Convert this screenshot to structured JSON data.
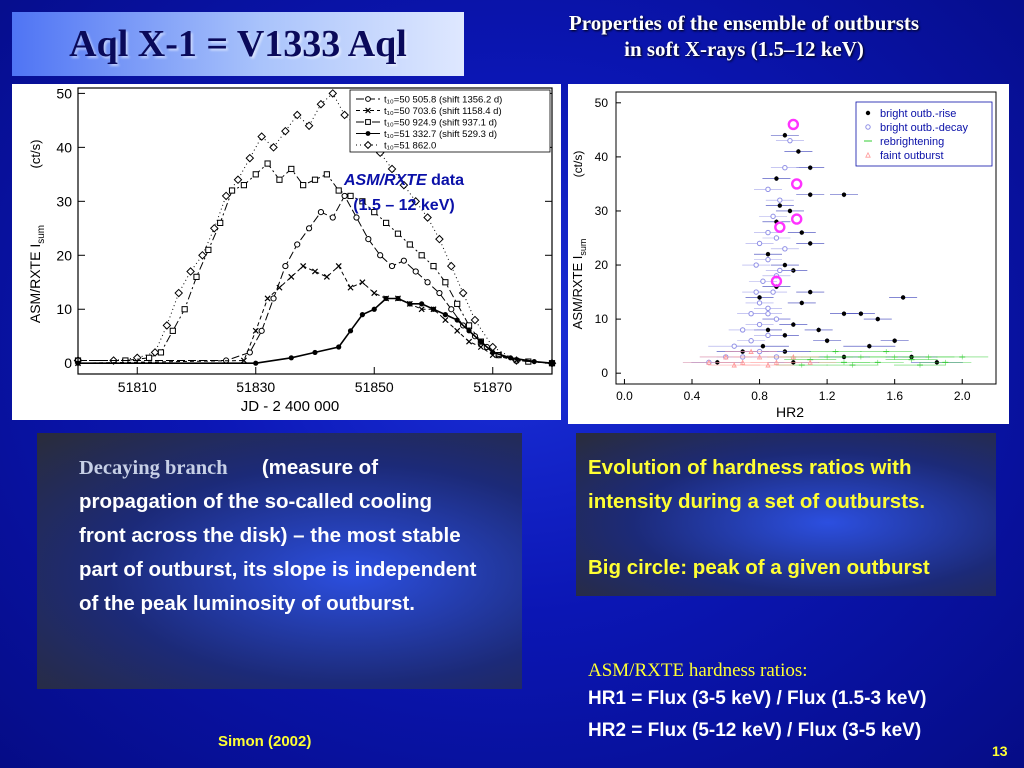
{
  "slide": {
    "title": "Aql X-1 = V1333 Aql",
    "subtitle_line1": "Properties of the ensemble of outbursts",
    "subtitle_line2": "in soft X-rays (1.5–12 keV)",
    "page_number": "13",
    "credit": "Simon (2002)"
  },
  "text": {
    "decay_lead": "Decaying branch",
    "decay_body": "(measure of propagation of the so-called cooling front across the disk) – the most stable part of outburst, its slope is independent of the peak luminosity of outburst.",
    "evol_1": "Evolution of hardness ratios with intensity during a set of outbursts.",
    "evol_2": "Big circle: peak of a given outburst",
    "hr_heading": "ASM/RXTE hardness ratios:",
    "hr1": "HR1 = Flux (3-5 keV) / Flux (1.5-3 keV)",
    "hr2": "HR2 = Flux (5-12 keV) / Flux (3-5 keV)"
  },
  "colors": {
    "highlight": "#ffff33",
    "peak_circle": "#ff33ff",
    "annotation": "#0a10a8",
    "rise": "#000000",
    "decay": "#8f8fe6",
    "rebrightening": "#33cc33",
    "faint": "#ff9999"
  },
  "chart_data": [
    {
      "type": "line",
      "xlabel": "JD - 2 400 000",
      "ylabel": "ASM/RXTE I",
      "ylabel_sub": "sum",
      "yunit": "(ct/s)",
      "xlim": [
        51800,
        51880
      ],
      "ylim": [
        -2,
        51
      ],
      "xticks": [
        51810,
        51830,
        51850,
        51870
      ],
      "yticks": [
        0,
        10,
        20,
        30,
        40,
        50
      ],
      "annotation_line1_italic": "ASM/RXTE",
      "annotation_line1_rest": "data",
      "annotation_line2": "(1.5 – 12 keV)",
      "legend": [
        {
          "text": "t₁₀=50 505.8  (shift  1356.2 d)",
          "marker": "circle-open"
        },
        {
          "text": "t₁₀=50 703.6  (shift  1158.4 d)",
          "marker": "cross"
        },
        {
          "text": "t₁₀=50 924.9  (shift    937.1 d)",
          "marker": "square-open"
        },
        {
          "text": "t₁₀=51 332.7  (shift    529.3 d)",
          "marker": "circle-filled"
        },
        {
          "text": "t₁₀=51 862.0",
          "marker": "diamond-open"
        }
      ],
      "series": [
        {
          "marker": "diamond-open",
          "dash": "1 3",
          "x": [
            51800,
            51806,
            51810,
            51813,
            51815,
            51817,
            51819,
            51821,
            51823,
            51825,
            51827,
            51829,
            51831,
            51833,
            51835,
            51837,
            51839,
            51841,
            51843,
            51845,
            51847,
            51849,
            51851,
            51853,
            51855,
            51857,
            51859,
            51861,
            51863,
            51865,
            51867,
            51870,
            51874,
            51880
          ],
          "y": [
            0.5,
            0.5,
            1,
            2,
            7,
            13,
            17,
            20,
            25,
            31,
            34,
            38,
            42,
            40,
            43,
            46,
            44,
            48,
            50,
            46,
            44,
            42,
            39,
            36,
            33,
            30,
            27,
            23,
            18,
            13,
            8,
            3,
            0.5,
            0
          ]
        },
        {
          "marker": "square-open",
          "dash": "8 3 2 3",
          "x": [
            51800,
            51808,
            51812,
            51814,
            51816,
            51818,
            51820,
            51822,
            51824,
            51826,
            51828,
            51830,
            51832,
            51834,
            51836,
            51838,
            51840,
            51842,
            51844,
            51846,
            51848,
            51850,
            51852,
            51854,
            51856,
            51858,
            51860,
            51862,
            51864,
            51866,
            51868,
            51871,
            51876,
            51880
          ],
          "y": [
            0.5,
            0.5,
            1,
            2,
            6,
            10,
            16,
            21,
            26,
            32,
            33,
            35,
            37,
            34,
            36,
            33,
            34,
            35,
            32,
            31,
            30,
            28,
            26,
            24,
            22,
            20,
            18,
            15,
            11,
            7,
            4,
            1.5,
            0.3,
            0
          ]
        },
        {
          "marker": "circle-open",
          "dash": "8 3",
          "x": [
            51800,
            51825,
            51829,
            51831,
            51833,
            51835,
            51837,
            51839,
            51841,
            51843,
            51845,
            51847,
            51849,
            51851,
            51853,
            51855,
            51857,
            51859,
            51861,
            51863,
            51865,
            51867,
            51869,
            51871,
            51874,
            51880
          ],
          "y": [
            0.5,
            0.5,
            2,
            6,
            12,
            18,
            22,
            25,
            28,
            27,
            31,
            27,
            23,
            20,
            18,
            19,
            17,
            15,
            13,
            10,
            7,
            5,
            3,
            1.5,
            0.5,
            0
          ]
        },
        {
          "marker": "cross",
          "dash": "4 3",
          "x": [
            51800,
            51828,
            51830,
            51832,
            51834,
            51836,
            51838,
            51840,
            51842,
            51844,
            51846,
            51848,
            51850,
            51852,
            51854,
            51856,
            51858,
            51860,
            51862,
            51864,
            51866,
            51868,
            51870,
            51874,
            51880
          ],
          "y": [
            0,
            0.5,
            6,
            12,
            14,
            16,
            18,
            17,
            16,
            18,
            14,
            15,
            13,
            12,
            12,
            11,
            10,
            10,
            8,
            6,
            4,
            3,
            1.5,
            0.5,
            0
          ]
        },
        {
          "marker": "circle-filled",
          "dash": "",
          "x": [
            51800,
            51830,
            51836,
            51840,
            51844,
            51846,
            51848,
            51850,
            51852,
            51854,
            51856,
            51858,
            51860,
            51862,
            51864,
            51866,
            51868,
            51870,
            51873,
            51877,
            51880
          ],
          "y": [
            0,
            0,
            1,
            2,
            3,
            6,
            9,
            10,
            12,
            12,
            11,
            11,
            10,
            9,
            8,
            6,
            4,
            2,
            1,
            0.3,
            0
          ]
        }
      ]
    },
    {
      "type": "scatter",
      "xlabel": "HR2",
      "ylabel": "ASM/RXTE I",
      "ylabel_sub": "sum",
      "yunit": "(ct/s)",
      "xlim": [
        -0.05,
        2.2
      ],
      "ylim": [
        -2,
        52
      ],
      "xticks": [
        0.0,
        0.4,
        0.8,
        1.2,
        1.6,
        2.0
      ],
      "yticks": [
        0,
        10,
        20,
        30,
        40,
        50
      ],
      "legend_placement": "top-right",
      "legend": [
        {
          "text": "bright outb.-rise",
          "marker": "dot"
        },
        {
          "text": "bright outb.-decay",
          "marker": "circle-open"
        },
        {
          "text": "rebrightening",
          "marker": "dash"
        },
        {
          "text": "faint outburst",
          "marker": "triangle-open"
        }
      ],
      "peaks": [
        {
          "x": 1.0,
          "y": 46
        },
        {
          "x": 1.02,
          "y": 35
        },
        {
          "x": 1.02,
          "y": 28.5
        },
        {
          "x": 0.92,
          "y": 27
        },
        {
          "x": 0.9,
          "y": 17
        }
      ],
      "series": [
        {
          "name": "bright outb.-rise",
          "points": [
            [
              0.95,
              44
            ],
            [
              1.03,
              41
            ],
            [
              1.1,
              38
            ],
            [
              0.9,
              36
            ],
            [
              1.1,
              33
            ],
            [
              1.3,
              33
            ],
            [
              0.92,
              31
            ],
            [
              0.98,
              30
            ],
            [
              0.9,
              28
            ],
            [
              1.05,
              26
            ],
            [
              1.1,
              24
            ],
            [
              0.85,
              22
            ],
            [
              0.95,
              20
            ],
            [
              1.0,
              19
            ],
            [
              0.9,
              16
            ],
            [
              1.1,
              15
            ],
            [
              0.8,
              14
            ],
            [
              1.05,
              13
            ],
            [
              1.65,
              14
            ],
            [
              1.3,
              11
            ],
            [
              1.4,
              11
            ],
            [
              1.5,
              10
            ],
            [
              0.9,
              10
            ],
            [
              1.0,
              9
            ],
            [
              1.15,
              8
            ],
            [
              0.85,
              8
            ],
            [
              1.6,
              6
            ],
            [
              1.45,
              5
            ],
            [
              1.2,
              6
            ],
            [
              0.7,
              4
            ],
            [
              0.95,
              4
            ],
            [
              1.3,
              3
            ],
            [
              0.55,
              2
            ],
            [
              1.0,
              2
            ],
            [
              1.7,
              3
            ],
            [
              1.85,
              2
            ],
            [
              0.82,
              5
            ],
            [
              0.95,
              7
            ]
          ]
        },
        {
          "name": "bright outb.-decay",
          "points": [
            [
              0.98,
              43
            ],
            [
              0.95,
              38
            ],
            [
              0.85,
              34
            ],
            [
              0.92,
              32
            ],
            [
              0.88,
              29
            ],
            [
              0.85,
              26
            ],
            [
              0.9,
              25
            ],
            [
              0.8,
              24
            ],
            [
              0.95,
              23
            ],
            [
              0.85,
              21
            ],
            [
              0.78,
              20
            ],
            [
              0.9,
              18
            ],
            [
              0.82,
              17
            ],
            [
              0.88,
              15
            ],
            [
              0.8,
              13
            ],
            [
              0.85,
              12
            ],
            [
              0.75,
              11
            ],
            [
              0.9,
              10
            ],
            [
              0.8,
              9
            ],
            [
              0.7,
              8
            ],
            [
              0.85,
              7
            ],
            [
              0.75,
              6
            ],
            [
              0.65,
              5
            ],
            [
              0.8,
              4
            ],
            [
              0.7,
              3
            ],
            [
              0.6,
              3
            ],
            [
              0.9,
              3
            ],
            [
              0.5,
              2
            ],
            [
              0.85,
              11
            ],
            [
              0.78,
              15
            ],
            [
              0.92,
              19
            ]
          ]
        },
        {
          "name": "rebrightening",
          "points": [
            [
              1.0,
              3
            ],
            [
              1.1,
              2.5
            ],
            [
              1.2,
              3
            ],
            [
              1.3,
              2
            ],
            [
              1.4,
              3
            ],
            [
              1.5,
              2
            ],
            [
              1.6,
              3
            ],
            [
              1.7,
              2.5
            ],
            [
              1.8,
              3
            ],
            [
              1.9,
              2
            ],
            [
              2.0,
              3
            ],
            [
              1.25,
              4
            ],
            [
              1.55,
              4
            ],
            [
              1.75,
              1.5
            ],
            [
              1.05,
              1.5
            ],
            [
              1.35,
              1.5
            ]
          ]
        },
        {
          "name": "faint outburst",
          "points": [
            [
              0.5,
              2
            ],
            [
              0.6,
              3
            ],
            [
              0.7,
              2
            ],
            [
              0.8,
              3
            ],
            [
              0.9,
              2
            ],
            [
              1.0,
              3
            ],
            [
              1.1,
              2
            ],
            [
              0.75,
              4
            ],
            [
              0.65,
              1.5
            ],
            [
              0.85,
              1.5
            ]
          ]
        }
      ]
    }
  ]
}
